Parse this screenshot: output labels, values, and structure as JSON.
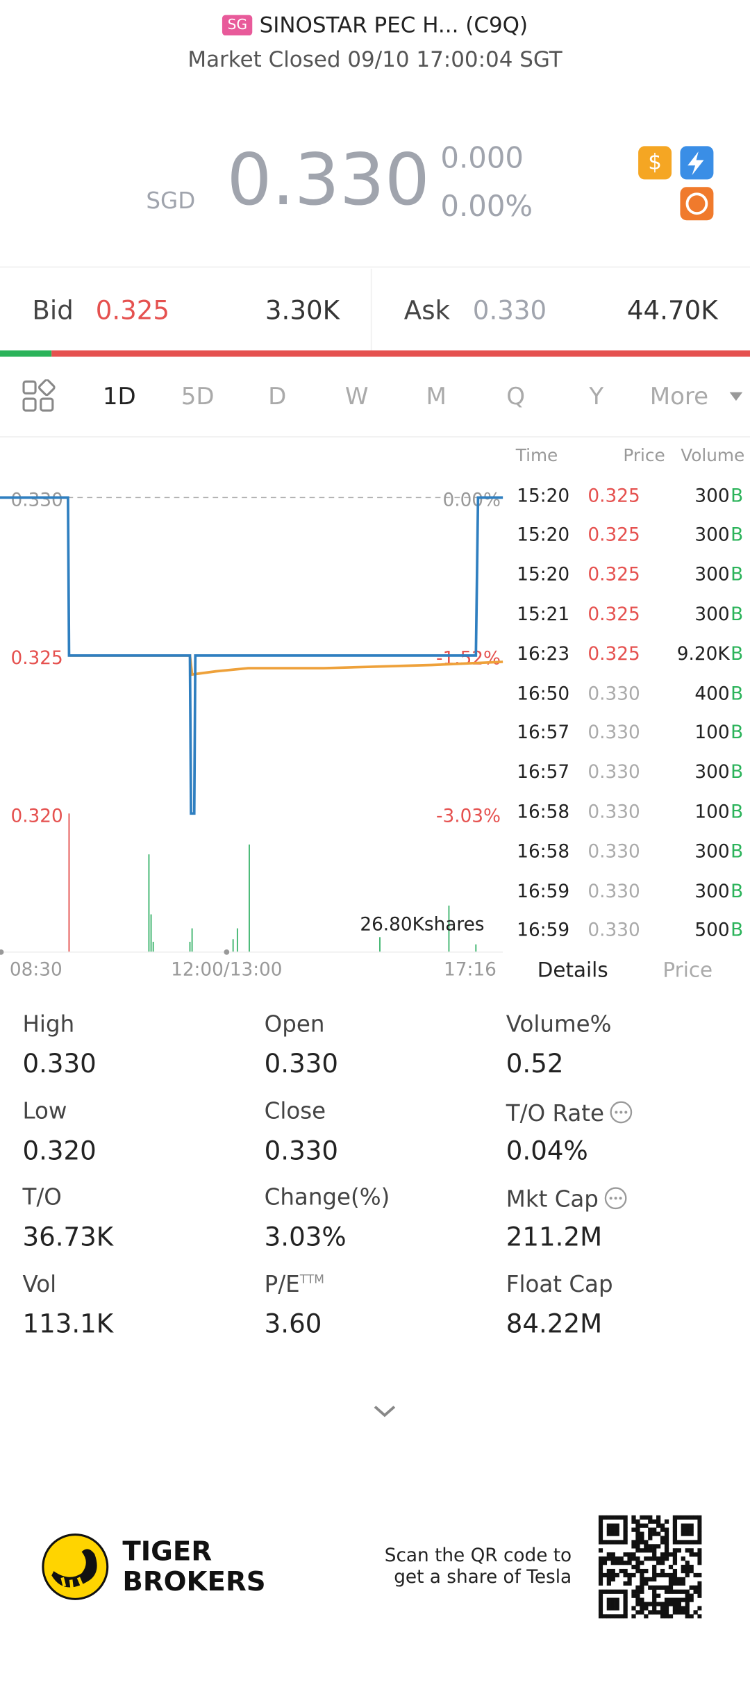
{
  "header": {
    "badge": "SG",
    "name": "SINOSTAR PEC H... (C9Q)",
    "status": "Market Closed 09/10 17:00:04 SGT"
  },
  "quote": {
    "currency": "SGD",
    "price": "0.330",
    "change": "0.000",
    "change_pct": "0.00%"
  },
  "order_book": {
    "bid_label": "Bid",
    "bid": "0.325",
    "bid_size": {
      "value": 3300,
      "label": "3.30K"
    },
    "ask_label": "Ask",
    "ask": "0.330",
    "ask_size": {
      "value": 44700,
      "label": "44.70K"
    },
    "colors": [
      "#2bb35a",
      "#e5514f"
    ]
  },
  "tabs": [
    "1D",
    "5D",
    "D",
    "W",
    "M",
    "Q",
    "Y",
    "More"
  ],
  "chart": {
    "type": "line",
    "xlim": [
      0,
      466
    ],
    "xticks": [
      {
        "value": 0,
        "label": "08:30"
      },
      {
        "value": 210,
        "label": "12:00/13:00"
      },
      {
        "value": 466,
        "label": "17:16"
      }
    ],
    "ylim": [
      0.32,
      0.33
    ],
    "yticks": [
      {
        "value": 0.33,
        "label": "0.330"
      },
      0.325,
      {
        "value": 0.32,
        "label": "0.320"
      }
    ],
    "y2lim": [
      -3.03,
      0
    ],
    "y2ticks": [
      {
        "value": 0,
        "label": "0.00%"
      },
      {
        "value": -1.52,
        "label": "-1.52%"
      },
      {
        "value": -3.03,
        "label": "-3.03%"
      }
    ],
    "series": [
      {
        "color": "#2f7fc0",
        "x": [
          0,
          63,
          64,
          176,
          177,
          180,
          181,
          441,
          443,
          466
        ],
        "values": [
          0.33,
          0.33,
          0.325,
          0.325,
          0.32,
          0.32,
          0.325,
          0.325,
          0.33,
          0.33
        ]
      },
      {
        "color": "#eea13a",
        "x": [
          64,
          176,
          178,
          200,
          230,
          300,
          400,
          466
        ],
        "values": [
          0.325,
          0.325,
          0.3244,
          0.3245,
          0.3246,
          0.3246,
          0.3247,
          0.3248
        ]
      }
    ],
    "volume": {
      "ylim": [
        0,
        26800
      ],
      "label": "26.80Kshares",
      "x": [
        64,
        138,
        140,
        142,
        176,
        178,
        216,
        220,
        231,
        352,
        416,
        441
      ],
      "values": [
        26800,
        18900,
        7300,
        2000,
        2000,
        4600,
        2500,
        4600,
        20800,
        2900,
        9000,
        1500
      ],
      "colors": [
        "#e5514f",
        "#3db46d",
        "#3db46d",
        "#3db46d",
        "#3db46d",
        "#3db46d",
        "#3db46d",
        "#3db46d",
        "#3db46d",
        "#3db46d",
        "#3db46d",
        "#3db46d"
      ]
    }
  },
  "trades": {
    "columns": [
      "Time",
      "Price",
      "Volume"
    ],
    "rows": [
      [
        "15:20",
        "0.325",
        "300",
        "B"
      ],
      [
        "15:20",
        "0.325",
        "300",
        "B"
      ],
      [
        "15:20",
        "0.325",
        "300",
        "B"
      ],
      [
        "15:21",
        "0.325",
        "300",
        "B"
      ],
      [
        "16:23",
        "0.325",
        "9.20K",
        "B"
      ],
      [
        "16:50",
        "0.330",
        "400",
        "B"
      ],
      [
        "16:57",
        "0.330",
        "100",
        "B"
      ],
      [
        "16:57",
        "0.330",
        "300",
        "B"
      ],
      [
        "16:58",
        "0.330",
        "100",
        "B"
      ],
      [
        "16:58",
        "0.330",
        "300",
        "B"
      ],
      [
        "16:59",
        "0.330",
        "300",
        "B"
      ],
      [
        "16:59",
        "0.330",
        "500",
        "B"
      ]
    ]
  },
  "detail_tabs": [
    "Details",
    "Price"
  ],
  "stats": [
    {
      "label": "High",
      "value": "0.330"
    },
    {
      "label": "Open",
      "value": "0.330"
    },
    {
      "label": "Volume%",
      "value": "0.52"
    },
    {
      "label": "Low",
      "value": "0.320"
    },
    {
      "label": "Close",
      "value": "0.330"
    },
    {
      "label": "T/O Rate",
      "value": "0.04%",
      "info": true
    },
    {
      "label": "T/O",
      "value": "36.73K"
    },
    {
      "label": "Change(%)",
      "value": "3.03%"
    },
    {
      "label": "Mkt Cap",
      "value": "211.2M",
      "info": true
    },
    {
      "label": "Vol",
      "value": "113.1K"
    },
    {
      "label": "P/E",
      "sup": "TTM",
      "value": "3.60"
    },
    {
      "label": "Float Cap",
      "value": "84.22M"
    }
  ],
  "footer": {
    "brand": [
      "TIGER",
      "BROKERS"
    ],
    "qr_text": [
      "Scan the QR code to",
      "get a share of Tesla"
    ]
  }
}
